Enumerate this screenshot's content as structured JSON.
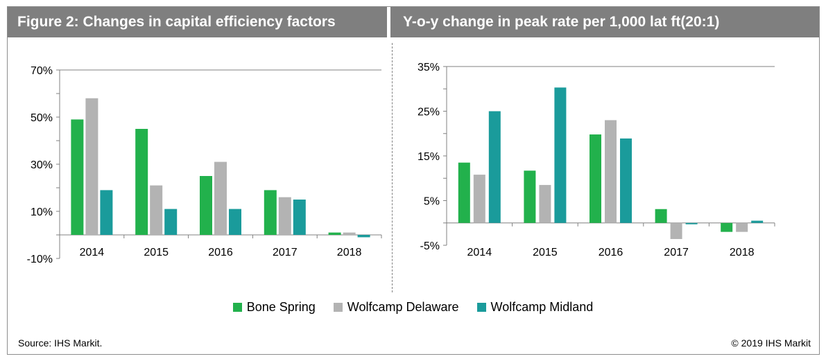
{
  "figure_title": "Figure 2: Changes in capital efficiency factors",
  "panel_title": "Y-o-y change in peak rate per 1,000 lat ft(20:1)",
  "colors": {
    "Bone Spring": "#22b14c",
    "Wolfcamp Delaware": "#b3b3b3",
    "Wolfcamp Midland": "#1a9b9b"
  },
  "legend": [
    "Bone Spring",
    "Wolfcamp Delaware",
    "Wolfcamp Midland"
  ],
  "source": "Source: IHS Markit.",
  "copyright": "© 2019 IHS Markit",
  "chart_data": [
    {
      "type": "bar",
      "categories": [
        "2014",
        "2015",
        "2016",
        "2017",
        "2018"
      ],
      "series": [
        {
          "name": "Bone Spring",
          "values": [
            49,
            45,
            25,
            19,
            1
          ]
        },
        {
          "name": "Wolfcamp Delaware",
          "values": [
            58,
            21,
            31,
            16,
            1
          ]
        },
        {
          "name": "Wolfcamp Midland",
          "values": [
            19,
            11,
            11,
            15,
            -1
          ]
        }
      ],
      "ylim": [
        -10,
        70
      ],
      "yticks": [
        -10,
        10,
        30,
        50,
        70
      ],
      "ytick_labels": [
        "-10%",
        "10%",
        "30%",
        "50%",
        "70%"
      ],
      "grid": false,
      "legend_position": "bottom"
    },
    {
      "type": "bar",
      "categories": [
        "2014",
        "2015",
        "2016",
        "2017",
        "2018"
      ],
      "series": [
        {
          "name": "Bone Spring",
          "values": [
            13.5,
            11.7,
            19.8,
            3.1,
            -2
          ]
        },
        {
          "name": "Wolfcamp Delaware",
          "values": [
            10.8,
            8.5,
            23,
            -3.6,
            -2
          ]
        },
        {
          "name": "Wolfcamp Midland",
          "values": [
            25,
            30.3,
            18.9,
            -0.3,
            0.5
          ]
        }
      ],
      "ylim": [
        -5,
        35
      ],
      "yticks": [
        -5,
        5,
        15,
        25,
        35
      ],
      "ytick_labels": [
        "-5%",
        "5%",
        "15%",
        "25%",
        "35%"
      ],
      "grid": false,
      "legend_position": "bottom"
    }
  ]
}
